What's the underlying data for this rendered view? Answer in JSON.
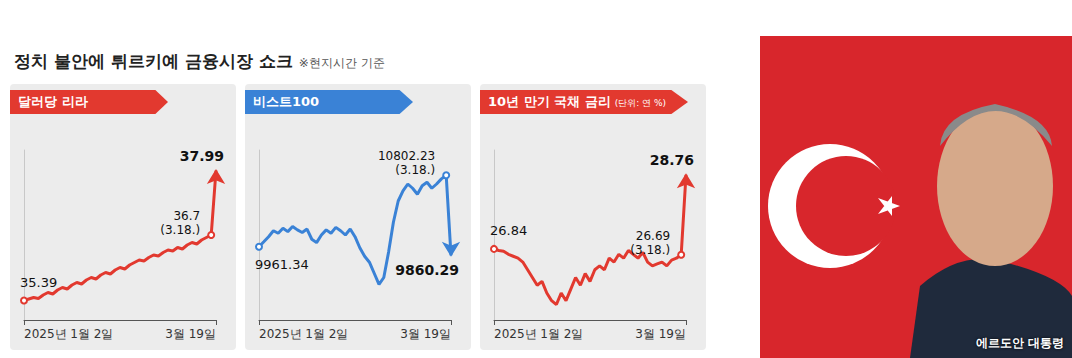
{
  "title": "정치 불안에 튀르키예 금융시장 쇼크",
  "note": "※현지시간 기준",
  "caption": "에르도안 대통령",
  "chart_data": [
    {
      "type": "line",
      "title": "달러당 리라",
      "color": "#e2392f",
      "categories": [
        "2025년 1월 2일",
        null,
        null,
        null,
        null,
        null,
        null,
        null,
        null,
        null,
        null,
        null,
        null,
        null,
        null,
        null,
        null,
        null,
        null,
        null,
        null,
        null,
        null,
        null,
        null,
        null,
        null,
        null,
        null,
        null,
        null,
        null,
        null,
        null,
        null,
        null,
        null,
        null,
        null,
        null,
        "3월 19일"
      ],
      "values": [
        35.39,
        35.42,
        35.45,
        35.43,
        35.5,
        35.55,
        35.52,
        35.6,
        35.65,
        35.62,
        35.7,
        35.75,
        35.72,
        35.8,
        35.85,
        35.82,
        35.9,
        35.95,
        35.92,
        36.0,
        36.05,
        36.02,
        36.1,
        36.15,
        36.2,
        36.18,
        36.25,
        36.3,
        36.28,
        36.35,
        36.4,
        36.38,
        36.45,
        36.42,
        36.5,
        36.55,
        36.52,
        36.6,
        36.65,
        36.7,
        37.99
      ],
      "value_labels": [
        "35.39",
        null,
        null,
        null,
        null,
        null,
        null,
        null,
        null,
        null,
        null,
        null,
        null,
        null,
        null,
        null,
        null,
        null,
        null,
        null,
        null,
        null,
        null,
        null,
        null,
        null,
        null,
        null,
        null,
        null,
        null,
        null,
        null,
        null,
        null,
        null,
        null,
        null,
        null,
        "36.7",
        "37.99"
      ],
      "value_notes": [
        null,
        null,
        null,
        null,
        null,
        null,
        null,
        null,
        null,
        null,
        null,
        null,
        null,
        null,
        null,
        null,
        null,
        null,
        null,
        null,
        null,
        null,
        null,
        null,
        null,
        null,
        null,
        null,
        null,
        null,
        null,
        null,
        null,
        null,
        null,
        null,
        null,
        null,
        null,
        "(3.18.)",
        null
      ],
      "ylim": [
        35.0,
        38.4
      ],
      "tick_labels": "x",
      "grid": false,
      "data_labels": true
    },
    {
      "type": "line",
      "title": "비스트100",
      "color": "#3a82d6",
      "categories": [
        "2025년 1월 2일",
        null,
        null,
        null,
        null,
        null,
        null,
        null,
        null,
        null,
        null,
        null,
        null,
        null,
        null,
        null,
        null,
        null,
        null,
        null,
        null,
        null,
        null,
        null,
        null,
        null,
        null,
        null,
        null,
        null,
        null,
        null,
        null,
        null,
        null,
        null,
        null,
        null,
        null,
        null,
        "3월 19일"
      ],
      "values": [
        9961.34,
        10020,
        10080,
        10150,
        10120,
        10180,
        10140,
        10200,
        10160,
        10130,
        10170,
        10050,
        10010,
        10100,
        10160,
        10120,
        10190,
        10150,
        10100,
        10170,
        10080,
        9950,
        9850,
        9780,
        9650,
        9520,
        9600,
        9900,
        10250,
        10500,
        10620,
        10700,
        10650,
        10580,
        10680,
        10720,
        10650,
        10700,
        10760,
        10802.23,
        9860.29
      ],
      "value_labels": [
        "9961.34",
        null,
        null,
        null,
        null,
        null,
        null,
        null,
        null,
        null,
        null,
        null,
        null,
        null,
        null,
        null,
        null,
        null,
        null,
        null,
        null,
        null,
        null,
        null,
        null,
        null,
        null,
        null,
        null,
        null,
        null,
        null,
        null,
        null,
        null,
        null,
        null,
        null,
        null,
        "10802.23",
        "9860.29"
      ],
      "value_notes": [
        null,
        null,
        null,
        null,
        null,
        null,
        null,
        null,
        null,
        null,
        null,
        null,
        null,
        null,
        null,
        null,
        null,
        null,
        null,
        null,
        null,
        null,
        null,
        null,
        null,
        null,
        null,
        null,
        null,
        null,
        null,
        null,
        null,
        null,
        null,
        null,
        null,
        null,
        null,
        "(3.18.)",
        null
      ],
      "ylim": [
        9100,
        11100
      ],
      "tick_labels": "x",
      "grid": false,
      "data_labels": true
    },
    {
      "type": "line",
      "title": "10년 만기 국채 금리",
      "subtitle": "(단위: 연 %)",
      "color": "#e2392f",
      "categories": [
        "2025년 1월 2일",
        null,
        null,
        null,
        null,
        null,
        null,
        null,
        null,
        null,
        null,
        null,
        null,
        null,
        null,
        null,
        null,
        null,
        null,
        null,
        null,
        null,
        null,
        null,
        null,
        null,
        null,
        null,
        null,
        null,
        null,
        null,
        null,
        null,
        null,
        null,
        null,
        null,
        null,
        null,
        "3월 19일"
      ],
      "values": [
        26.84,
        26.8,
        26.78,
        26.7,
        26.65,
        26.6,
        26.5,
        26.3,
        26.1,
        25.9,
        26.0,
        25.7,
        25.5,
        25.4,
        25.7,
        25.5,
        25.8,
        26.1,
        25.9,
        26.2,
        26.0,
        26.3,
        26.4,
        26.3,
        26.6,
        26.5,
        26.7,
        26.6,
        26.8,
        26.7,
        26.6,
        26.75,
        26.5,
        26.4,
        26.45,
        26.5,
        26.4,
        26.55,
        26.6,
        26.69,
        28.76
      ],
      "value_labels": [
        "26.84",
        null,
        null,
        null,
        null,
        null,
        null,
        null,
        null,
        null,
        null,
        null,
        null,
        null,
        null,
        null,
        null,
        null,
        null,
        null,
        null,
        null,
        null,
        null,
        null,
        null,
        null,
        null,
        null,
        null,
        null,
        null,
        null,
        null,
        null,
        null,
        null,
        null,
        null,
        "26.69",
        "28.76"
      ],
      "value_notes": [
        null,
        null,
        null,
        null,
        null,
        null,
        null,
        null,
        null,
        null,
        null,
        null,
        null,
        null,
        null,
        null,
        null,
        null,
        null,
        null,
        null,
        null,
        null,
        null,
        null,
        null,
        null,
        null,
        null,
        null,
        null,
        null,
        null,
        null,
        null,
        null,
        null,
        null,
        null,
        "(3.18.)",
        null
      ],
      "ylim": [
        25.0,
        29.4
      ],
      "tick_labels": "x",
      "grid": false,
      "data_labels": true
    }
  ]
}
